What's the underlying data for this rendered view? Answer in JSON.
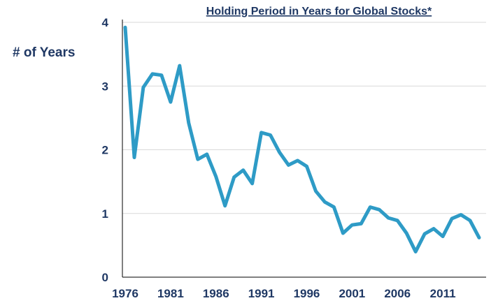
{
  "chart_data": {
    "type": "line",
    "title": "Holding Period in Years for Global Stocks*",
    "ylabel": "# of Years",
    "xlabel": "",
    "ylim": [
      0,
      4
    ],
    "xlim": [
      1976,
      2015
    ],
    "yticks": [
      0,
      1,
      2,
      3,
      4
    ],
    "xticks": [
      1976,
      1981,
      1986,
      1991,
      1996,
      2001,
      2006,
      2011
    ],
    "grid": "horizontal",
    "colors": {
      "series": "#2e9bc6",
      "text": "#1f3864",
      "grid": "#d9d9d9"
    },
    "series": [
      {
        "x": [
          1976,
          1977,
          1978,
          1979,
          1980,
          1981,
          1982,
          1983,
          1984,
          1985,
          1986,
          1987,
          1988,
          1989,
          1990,
          1991,
          1992,
          1993,
          1994,
          1995,
          1996,
          1997,
          1998,
          1999,
          2000,
          2001,
          2002,
          2003,
          2004,
          2005,
          2006,
          2007,
          2008,
          2009,
          2010,
          2011,
          2012,
          2013,
          2014,
          2015
        ],
        "values": [
          3.92,
          1.88,
          2.98,
          3.19,
          3.17,
          2.75,
          3.32,
          2.42,
          1.85,
          1.93,
          1.58,
          1.12,
          1.57,
          1.68,
          1.47,
          2.27,
          2.23,
          1.96,
          1.76,
          1.83,
          1.74,
          1.35,
          1.18,
          1.1,
          0.69,
          0.82,
          0.84,
          1.1,
          1.06,
          0.93,
          0.89,
          0.69,
          0.4,
          0.68,
          0.76,
          0.64,
          0.92,
          0.98,
          0.89,
          0.62
        ]
      }
    ]
  }
}
